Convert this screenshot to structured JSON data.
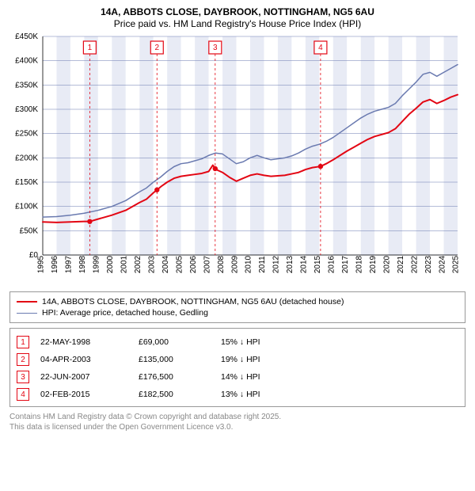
{
  "title_line1": "14A, ABBOTS CLOSE, DAYBROOK, NOTTINGHAM, NG5 6AU",
  "title_line2": "Price paid vs. HM Land Registry's House Price Index (HPI)",
  "chart": {
    "type": "line",
    "x_start_year": 1995,
    "x_end_year": 2025,
    "ylim": [
      0,
      450000
    ],
    "ytick_step": 50000,
    "ylabels": [
      "£0",
      "£50K",
      "£100K",
      "£150K",
      "£200K",
      "£250K",
      "£300K",
      "£350K",
      "£400K",
      "£450K"
    ],
    "grid_color": "#6a7ab0",
    "band_even_color": "#e8ebf5",
    "band_odd_color": "#ffffff",
    "background_color": "#ffffff",
    "tick_fontsize": 10,
    "title_fontsize": 12,
    "series": [
      {
        "name": "red",
        "color": "#e30613",
        "stroke_width": 2,
        "points": [
          [
            1995.0,
            68000
          ],
          [
            1996.0,
            67000
          ],
          [
            1997.0,
            68000
          ],
          [
            1998.0,
            69000
          ],
          [
            1998.4,
            69000
          ],
          [
            1999.0,
            74000
          ],
          [
            2000.0,
            82000
          ],
          [
            2001.0,
            92000
          ],
          [
            2002.0,
            108000
          ],
          [
            2002.5,
            115000
          ],
          [
            2003.0,
            128000
          ],
          [
            2003.3,
            135000
          ],
          [
            2003.6,
            142000
          ],
          [
            2004.0,
            150000
          ],
          [
            2004.5,
            158000
          ],
          [
            2005.0,
            162000
          ],
          [
            2005.5,
            164000
          ],
          [
            2006.0,
            166000
          ],
          [
            2006.5,
            168000
          ],
          [
            2007.0,
            172000
          ],
          [
            2007.3,
            185000
          ],
          [
            2007.5,
            176500
          ],
          [
            2008.0,
            170000
          ],
          [
            2008.5,
            160000
          ],
          [
            2009.0,
            152000
          ],
          [
            2009.5,
            158000
          ],
          [
            2010.0,
            164000
          ],
          [
            2010.5,
            167000
          ],
          [
            2011.0,
            164000
          ],
          [
            2011.5,
            162000
          ],
          [
            2012.0,
            163000
          ],
          [
            2012.5,
            164000
          ],
          [
            2013.0,
            167000
          ],
          [
            2013.5,
            170000
          ],
          [
            2014.0,
            176000
          ],
          [
            2014.5,
            180000
          ],
          [
            2015.1,
            182500
          ],
          [
            2015.5,
            188000
          ],
          [
            2016.0,
            196000
          ],
          [
            2016.5,
            205000
          ],
          [
            2017.0,
            214000
          ],
          [
            2017.5,
            222000
          ],
          [
            2018.0,
            230000
          ],
          [
            2018.5,
            238000
          ],
          [
            2019.0,
            244000
          ],
          [
            2019.5,
            248000
          ],
          [
            2020.0,
            252000
          ],
          [
            2020.5,
            260000
          ],
          [
            2021.0,
            275000
          ],
          [
            2021.5,
            290000
          ],
          [
            2022.0,
            302000
          ],
          [
            2022.5,
            315000
          ],
          [
            2023.0,
            320000
          ],
          [
            2023.5,
            312000
          ],
          [
            2024.0,
            318000
          ],
          [
            2024.5,
            325000
          ],
          [
            2025.0,
            330000
          ]
        ]
      },
      {
        "name": "blue",
        "color": "#6a7ab0",
        "stroke_width": 1.5,
        "points": [
          [
            1995.0,
            78000
          ],
          [
            1996.0,
            79000
          ],
          [
            1997.0,
            82000
          ],
          [
            1998.0,
            86000
          ],
          [
            1999.0,
            92000
          ],
          [
            2000.0,
            100000
          ],
          [
            2001.0,
            112000
          ],
          [
            2002.0,
            130000
          ],
          [
            2002.5,
            138000
          ],
          [
            2003.0,
            150000
          ],
          [
            2003.5,
            160000
          ],
          [
            2004.0,
            172000
          ],
          [
            2004.5,
            182000
          ],
          [
            2005.0,
            188000
          ],
          [
            2005.5,
            190000
          ],
          [
            2006.0,
            194000
          ],
          [
            2006.5,
            198000
          ],
          [
            2007.0,
            205000
          ],
          [
            2007.5,
            210000
          ],
          [
            2008.0,
            208000
          ],
          [
            2008.5,
            198000
          ],
          [
            2009.0,
            188000
          ],
          [
            2009.5,
            192000
          ],
          [
            2010.0,
            200000
          ],
          [
            2010.5,
            205000
          ],
          [
            2011.0,
            200000
          ],
          [
            2011.5,
            196000
          ],
          [
            2012.0,
            198000
          ],
          [
            2012.5,
            200000
          ],
          [
            2013.0,
            204000
          ],
          [
            2013.5,
            210000
          ],
          [
            2014.0,
            218000
          ],
          [
            2014.5,
            224000
          ],
          [
            2015.0,
            228000
          ],
          [
            2015.5,
            234000
          ],
          [
            2016.0,
            242000
          ],
          [
            2016.5,
            252000
          ],
          [
            2017.0,
            262000
          ],
          [
            2017.5,
            272000
          ],
          [
            2018.0,
            282000
          ],
          [
            2018.5,
            290000
          ],
          [
            2019.0,
            296000
          ],
          [
            2019.5,
            300000
          ],
          [
            2020.0,
            304000
          ],
          [
            2020.5,
            312000
          ],
          [
            2021.0,
            328000
          ],
          [
            2021.5,
            342000
          ],
          [
            2022.0,
            356000
          ],
          [
            2022.5,
            372000
          ],
          [
            2023.0,
            376000
          ],
          [
            2023.5,
            368000
          ],
          [
            2024.0,
            376000
          ],
          [
            2024.5,
            384000
          ],
          [
            2025.0,
            392000
          ]
        ]
      }
    ],
    "sale_markers": [
      {
        "n": 1,
        "year": 1998.4
      },
      {
        "n": 2,
        "year": 2003.26
      },
      {
        "n": 3,
        "year": 2007.47
      },
      {
        "n": 4,
        "year": 2015.09
      }
    ]
  },
  "legend": {
    "red_label": "14A, ABBOTS CLOSE, DAYBROOK, NOTTINGHAM, NG5 6AU (detached house)",
    "blue_label": "HPI: Average price, detached house, Gedling",
    "red_color": "#e30613",
    "blue_color": "#6a7ab0"
  },
  "sales": [
    {
      "n": "1",
      "date": "22-MAY-1998",
      "price": "£69,000",
      "diff": "15% ↓ HPI"
    },
    {
      "n": "2",
      "date": "04-APR-2003",
      "price": "£135,000",
      "diff": "19% ↓ HPI"
    },
    {
      "n": "3",
      "date": "22-JUN-2007",
      "price": "£176,500",
      "diff": "14% ↓ HPI"
    },
    {
      "n": "4",
      "date": "02-FEB-2015",
      "price": "£182,500",
      "diff": "13% ↓ HPI"
    }
  ],
  "footer_line1": "Contains HM Land Registry data © Crown copyright and database right 2025.",
  "footer_line2": "This data is licensed under the Open Government Licence v3.0."
}
